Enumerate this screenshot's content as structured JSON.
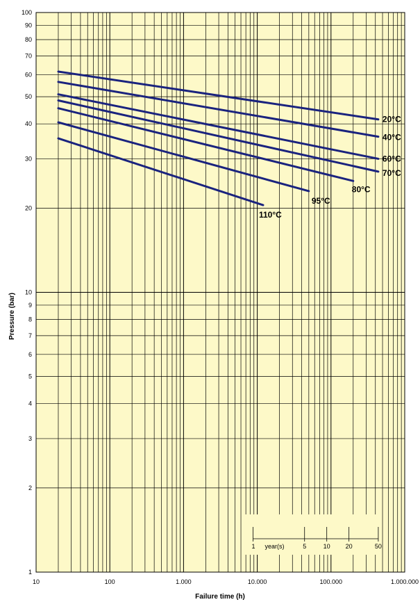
{
  "chart_data": {
    "type": "line",
    "title": "",
    "xlabel": "Failure time (h)",
    "ylabel": "Pressure (bar)",
    "x_scale": "log",
    "y_scale": "log",
    "xlim": [
      10,
      1000000
    ],
    "ylim": [
      1,
      100
    ],
    "grid": true,
    "background_color": "#fdf9c8",
    "line_color": "#1a237e",
    "x_tick_labels": [
      {
        "value": 10,
        "label": "10"
      },
      {
        "value": 100,
        "label": "100"
      },
      {
        "value": 1000,
        "label": "1.000"
      },
      {
        "value": 10000,
        "label": "10.000"
      },
      {
        "value": 100000,
        "label": "100.000"
      },
      {
        "value": 1000000,
        "label": "1.000.000"
      }
    ],
    "y_tick_labels": [
      {
        "value": 100,
        "label": "100"
      },
      {
        "value": 90,
        "label": "90"
      },
      {
        "value": 80,
        "label": "80"
      },
      {
        "value": 70,
        "label": "70"
      },
      {
        "value": 60,
        "label": "60"
      },
      {
        "value": 50,
        "label": "50"
      },
      {
        "value": 40,
        "label": "40"
      },
      {
        "value": 30,
        "label": "30"
      },
      {
        "value": 20,
        "label": "20"
      },
      {
        "value": 10,
        "label": "10"
      },
      {
        "value": 9,
        "label": "9"
      },
      {
        "value": 8,
        "label": "8"
      },
      {
        "value": 7,
        "label": "7"
      },
      {
        "value": 6,
        "label": "6"
      },
      {
        "value": 5,
        "label": "5"
      },
      {
        "value": 4,
        "label": "4"
      },
      {
        "value": 3,
        "label": "3"
      },
      {
        "value": 2,
        "label": "2"
      },
      {
        "value": 1,
        "label": "1"
      }
    ],
    "series": [
      {
        "name": "20°C",
        "x": [
          20,
          438000
        ],
        "y": [
          61.5,
          41.5
        ]
      },
      {
        "name": "40°C",
        "x": [
          20,
          438000
        ],
        "y": [
          56.5,
          36
        ]
      },
      {
        "name": "60°C",
        "x": [
          20,
          438000
        ],
        "y": [
          51,
          30
        ]
      },
      {
        "name": "70°C",
        "x": [
          20,
          438000
        ],
        "y": [
          48.5,
          27
        ]
      },
      {
        "name": "80°C",
        "x": [
          20,
          200000
        ],
        "y": [
          45.5,
          25
        ]
      },
      {
        "name": "95°C",
        "x": [
          20,
          50000
        ],
        "y": [
          40.5,
          23
        ]
      },
      {
        "name": "110°C",
        "x": [
          20,
          12000
        ],
        "y": [
          35.5,
          20.5
        ]
      }
    ],
    "years_scale": {
      "title": "year(s)",
      "marks": [
        {
          "years": 1,
          "label": "1"
        },
        {
          "years": 5,
          "label": "5"
        },
        {
          "years": 10,
          "label": "10"
        },
        {
          "years": 20,
          "label": "20"
        },
        {
          "years": 50,
          "label": "50"
        }
      ]
    }
  }
}
